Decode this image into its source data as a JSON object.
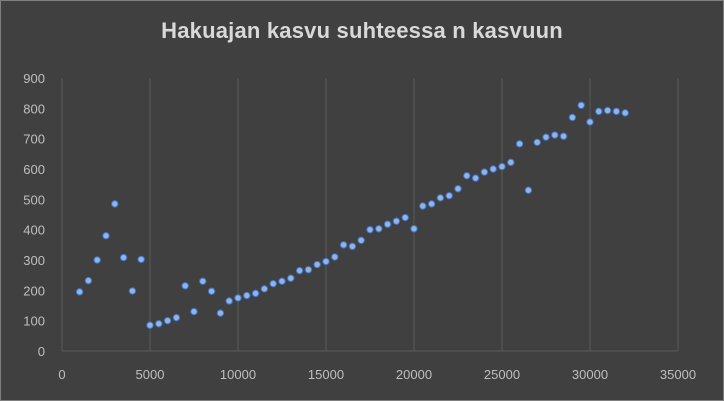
{
  "chart_data": {
    "type": "scatter",
    "title": "Hakuajan kasvu suhteessa n kasvuun",
    "xlabel": "",
    "ylabel": "",
    "xlim": [
      0,
      35000
    ],
    "ylim": [
      0,
      900
    ],
    "xticks": [
      0,
      5000,
      10000,
      15000,
      20000,
      25000,
      30000,
      35000
    ],
    "yticks": [
      0,
      100,
      200,
      300,
      400,
      500,
      600,
      700,
      800,
      900
    ],
    "grid": "vertical",
    "legend": "none",
    "marker_color": "#8fb4e8",
    "marker_edge_color": "#4472c4",
    "series": [
      {
        "points": [
          [
            1000,
            195
          ],
          [
            1500,
            232
          ],
          [
            2000,
            300
          ],
          [
            2500,
            380
          ],
          [
            3000,
            485
          ],
          [
            3500,
            308
          ],
          [
            4000,
            198
          ],
          [
            4500,
            302
          ],
          [
            5000,
            85
          ],
          [
            5500,
            90
          ],
          [
            6000,
            100
          ],
          [
            6500,
            110
          ],
          [
            7000,
            215
          ],
          [
            7500,
            130
          ],
          [
            8000,
            230
          ],
          [
            8500,
            197
          ],
          [
            9000,
            125
          ],
          [
            9500,
            165
          ],
          [
            10000,
            175
          ],
          [
            10500,
            183
          ],
          [
            11000,
            190
          ],
          [
            11500,
            205
          ],
          [
            12000,
            222
          ],
          [
            12500,
            230
          ],
          [
            13000,
            240
          ],
          [
            13500,
            265
          ],
          [
            14000,
            268
          ],
          [
            14500,
            285
          ],
          [
            15000,
            295
          ],
          [
            15500,
            310
          ],
          [
            16000,
            350
          ],
          [
            16500,
            345
          ],
          [
            17000,
            365
          ],
          [
            17500,
            400
          ],
          [
            18000,
            403
          ],
          [
            18500,
            418
          ],
          [
            19000,
            428
          ],
          [
            19500,
            440
          ],
          [
            20000,
            403
          ],
          [
            20500,
            478
          ],
          [
            21000,
            485
          ],
          [
            21500,
            505
          ],
          [
            22000,
            512
          ],
          [
            22500,
            535
          ],
          [
            23000,
            578
          ],
          [
            23500,
            570
          ],
          [
            24000,
            590
          ],
          [
            24500,
            600
          ],
          [
            25000,
            608
          ],
          [
            25500,
            622
          ],
          [
            26000,
            683
          ],
          [
            26500,
            530
          ],
          [
            27000,
            688
          ],
          [
            27500,
            705
          ],
          [
            28000,
            712
          ],
          [
            28500,
            708
          ],
          [
            29000,
            770
          ],
          [
            29500,
            810
          ],
          [
            30000,
            755
          ],
          [
            30500,
            790
          ],
          [
            31000,
            793
          ],
          [
            31500,
            790
          ],
          [
            32000,
            785
          ]
        ]
      }
    ]
  }
}
